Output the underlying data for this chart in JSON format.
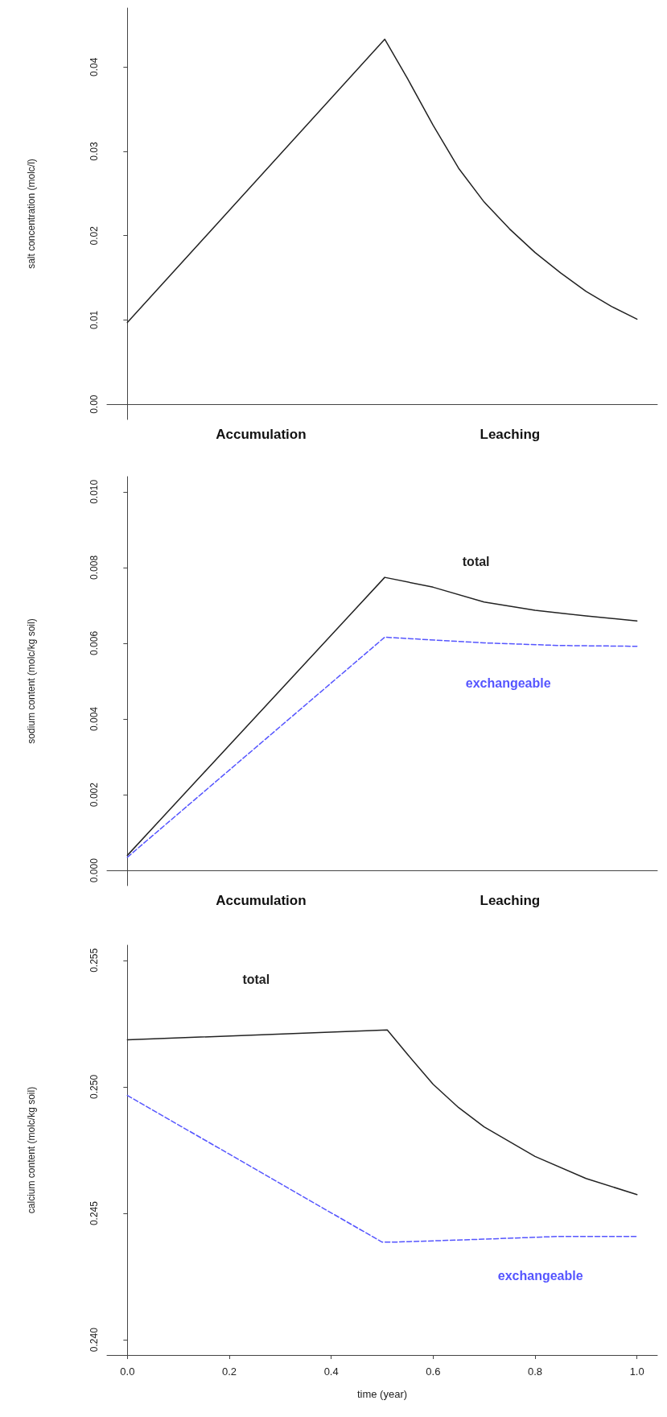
{
  "chart_data": [
    {
      "type": "line",
      "ylabel": "salt concentration (molc/l)",
      "xlim": [
        -0.04,
        1.04
      ],
      "ylim": [
        -0.0018,
        0.047
      ],
      "yticks": [
        {
          "value": 0,
          "label": "0.00"
        },
        0.01,
        0.02,
        0.03,
        0.04
      ],
      "tick_labels": "y",
      "annotations": [
        "Accumulation",
        "Leaching"
      ],
      "series": [
        {
          "color": "#222222",
          "line_style": "solid",
          "x": [
            0,
            0.505,
            0.55,
            0.6,
            0.65,
            0.7,
            0.75,
            0.8,
            0.85,
            0.9,
            0.95,
            1.0
          ],
          "values": [
            0.0097,
            0.0433,
            0.0386,
            0.0331,
            0.028,
            0.024,
            0.0208,
            0.018,
            0.0156,
            0.0134,
            0.0116,
            0.0101
          ]
        }
      ]
    },
    {
      "type": "line",
      "ylabel": "sodium content (molc/kg soil)",
      "xlim": [
        -0.04,
        1.04
      ],
      "ylim": [
        -0.0004,
        0.0104
      ],
      "yticks": [
        {
          "value": 0,
          "label": "0.000"
        },
        0.002,
        0.004,
        0.006,
        0.008,
        {
          "value": 0.01,
          "label": "0.010"
        }
      ],
      "tick_labels": "y",
      "annotations": [
        "Accumulation",
        "Leaching"
      ],
      "series": [
        {
          "name": "total",
          "color": "#222222",
          "line_style": "solid",
          "x": [
            0,
            0.505,
            0.6,
            0.7,
            0.8,
            0.9,
            1.0
          ],
          "values": [
            0.0004,
            0.00774,
            0.00748,
            0.00709,
            0.00687,
            0.00672,
            0.00659
          ]
        },
        {
          "name": "exchangeable",
          "color": "#5555ff",
          "line_style": "dashed",
          "x": [
            0,
            0.505,
            0.7,
            0.85,
            1.0
          ],
          "values": [
            0.00035,
            0.00616,
            0.00601,
            0.00594,
            0.00592
          ]
        }
      ]
    },
    {
      "type": "line",
      "xlabel": "time (year)",
      "ylabel": "calcium content (molc/kg soil)",
      "xlim": [
        -0.04,
        1.04
      ],
      "xticks": [
        {
          "value": 0,
          "label": "0.0"
        },
        0.2,
        0.4,
        0.6,
        0.8,
        {
          "value": 1,
          "label": "1.0"
        }
      ],
      "ylim": [
        0.2394,
        0.2556
      ],
      "yticks": [
        {
          "value": 0.24,
          "label": "0.240"
        },
        0.245,
        {
          "value": 0.25,
          "label": "0.250"
        },
        0.255
      ],
      "series": [
        {
          "name": "total",
          "color": "#222222",
          "line_style": "solid",
          "x": [
            0,
            0.51,
            0.55,
            0.6,
            0.65,
            0.7,
            0.8,
            0.9,
            1.0
          ],
          "values": [
            0.25186,
            0.25225,
            0.25128,
            0.2501,
            0.24918,
            0.24842,
            0.24725,
            0.24638,
            0.24574
          ]
        },
        {
          "name": "exchangeable",
          "color": "#5555ff",
          "line_style": "dashed",
          "x": [
            0,
            0.5,
            0.52,
            0.7,
            0.85,
            1.0
          ],
          "values": [
            0.24966,
            0.24386,
            0.24386,
            0.24398,
            0.24409,
            0.24409
          ]
        }
      ]
    }
  ]
}
